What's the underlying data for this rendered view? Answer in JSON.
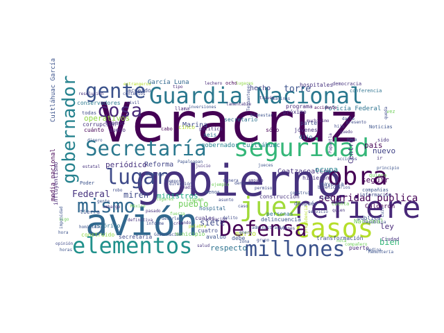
{
  "words": [
    {
      "text": "Veracruz",
      "color": "#440154"
    },
    {
      "text": "gobierno",
      "color": "#46327e"
    },
    {
      "text": "avión",
      "color": "#31688e"
    },
    {
      "text": "Guardia Nacional",
      "color": "#2a788e"
    },
    {
      "text": "seguridad",
      "color": "#35b779"
    },
    {
      "text": "Secretaría",
      "color": "#2a788e"
    },
    {
      "text": "refiere",
      "color": "#482878"
    },
    {
      "text": "casos",
      "color": "#b5de2b"
    },
    {
      "text": "juez",
      "color": "#a0da39"
    },
    {
      "text": "Defensa",
      "color": "#440154"
    },
    {
      "text": "elementos",
      "color": "#21918c"
    },
    {
      "text": "millones",
      "color": "#3b528b"
    },
    {
      "text": "gente",
      "color": "#3b528b"
    },
    {
      "text": "gobernador",
      "color": "#26828e"
    },
    {
      "text": "obra",
      "color": "#440154"
    },
    {
      "text": "lugar",
      "color": "#3e4a89"
    },
    {
      "text": "mismo",
      "color": "#31688e"
    },
    {
      "text": "cosa",
      "color": "#482878"
    },
    {
      "text": "Federal",
      "color": "#46327e"
    },
    {
      "text": "seguridad pública",
      "color": "#440154"
    },
    {
      "text": "hecho",
      "color": "#414487"
    },
    {
      "text": "Marina",
      "color": "#3e4a89"
    },
    {
      "text": "gobernador Cuitláhuac",
      "color": "#26828e"
    },
    {
      "text": "Coatzacoalcos",
      "color": "#46327e"
    },
    {
      "text": "país",
      "color": "#440154"
    },
    {
      "text": "nuevo",
      "color": "#414487"
    },
    {
      "text": "seguir",
      "color": "#440154"
    },
    {
      "text": "ley",
      "color": "#482878"
    },
    {
      "text": "bien",
      "color": "#35b779"
    },
    {
      "text": "Policía Federal",
      "color": "#2c728e"
    },
    {
      "text": "torre",
      "color": "#3b528b"
    },
    {
      "text": "pueblo",
      "color": "#6ece58"
    },
    {
      "text": "ministros",
      "color": "#22a884"
    },
    {
      "text": "miren",
      "color": "#3e4a89"
    },
    {
      "text": "siete",
      "color": "#3e4a89"
    },
    {
      "text": "marzo",
      "color": "#b5de2b"
    },
    {
      "text": "ocupa",
      "color": "#26828e"
    },
    {
      "text": "respecto",
      "color": "#2c728e"
    },
    {
      "text": "Reforma",
      "color": "#414487"
    },
    {
      "text": "periódico",
      "color": "#46327e"
    },
    {
      "text": "operativos",
      "color": "#8fd744"
    },
    {
      "text": "García Luna",
      "color": "#31688e"
    },
    {
      "text": "conservadores",
      "color": "#2a788e"
    },
    {
      "text": "corrupción",
      "color": "#46327e"
    },
    {
      "text": "cuánto",
      "color": "#440154"
    },
    {
      "text": "tiempo",
      "color": "#46327e"
    },
    {
      "text": "dueño",
      "color": "#482878"
    },
    {
      "text": "acuerdo",
      "color": "#3e4a89"
    },
    {
      "text": "hospitales",
      "color": "#46327e"
    },
    {
      "text": "programa",
      "color": "#482878"
    },
    {
      "text": "próximo",
      "color": "#46327e"
    },
    {
      "text": "secretario",
      "color": "#2c728e"
    },
    {
      "text": "jóvenes",
      "color": "#46327e"
    },
    {
      "text": "sólo",
      "color": "#440154"
    },
    {
      "text": "dijo",
      "color": "#31688e"
    },
    {
      "text": "parte",
      "color": "#3e4a89"
    },
    {
      "text": "mayoría",
      "color": "#3b528b"
    },
    {
      "text": "hicieron",
      "color": "#46327e"
    },
    {
      "text": "después",
      "color": "#3e4a89"
    },
    {
      "text": "personas",
      "color": "#2c728e"
    },
    {
      "text": "delincuencia",
      "color": "#3b528b"
    },
    {
      "text": "construcción",
      "color": "#46327e"
    },
    {
      "text": "hospital",
      "color": "#31688e"
    },
    {
      "text": "Calderón",
      "color": "#440154"
    },
    {
      "text": "Nacional",
      "color": "#6ece58"
    },
    {
      "text": "pública",
      "color": "#3b528b"
    },
    {
      "text": "transformación",
      "color": "#3e4a89"
    },
    {
      "text": "puerto",
      "color": "#482878"
    },
    {
      "text": "Ciudad",
      "color": "#46327e"
    },
    {
      "text": "secretaria",
      "color": "#3e4a89"
    },
    {
      "text": "Centro",
      "color": "#46327e"
    },
    {
      "text": "media nacional",
      "color": "#440154"
    },
    {
      "text": "Cuitláhuac García",
      "color": "#3b528b"
    },
    {
      "text": "influyentismo",
      "color": "#482878"
    },
    {
      "text": "tierra",
      "color": "#3b528b"
    },
    {
      "text": "histórico",
      "color": "#2c728e"
    },
    {
      "text": "construido",
      "color": "#8fd744"
    },
    {
      "text": "hora",
      "color": "#3b528b"
    },
    {
      "text": "siguen",
      "color": "#6ece58"
    },
    {
      "text": "cuatro",
      "color": "#3e4a89"
    },
    {
      "text": "cuales",
      "color": "#46327e"
    },
    {
      "text": "municipio",
      "color": "#6ece58"
    },
    {
      "text": "avalúo",
      "color": "#3b528b"
    },
    {
      "text": "debe",
      "color": "#3b528b"
    },
    {
      "text": "democracia",
      "color": "#46327e"
    },
    {
      "text": "conferencia",
      "color": "#2c728e"
    },
    {
      "text": "Noticias",
      "color": "#3b528b"
    },
    {
      "text": "sido",
      "color": "#46327e"
    },
    {
      "text": "compañías",
      "color": "#3b528b"
    },
    {
      "text": "información",
      "color": "#3e4a89"
    },
    {
      "text": "Papantla",
      "color": "#46327e"
    },
    {
      "text": "quiero",
      "color": "#6ece58"
    },
    {
      "text": "principio",
      "color": "#3b528b"
    },
    {
      "text": "República",
      "color": "#3e4a89"
    },
    {
      "text": "compañero",
      "color": "#6ece58"
    },
    {
      "text": "Remontería",
      "color": "#3b528b"
    },
    {
      "text": "ocho",
      "color": "#440154"
    },
    {
      "text": "lechero",
      "color": "#482878"
    },
    {
      "text": "lugares",
      "color": "#8fd744"
    },
    {
      "text": "Salinas",
      "color": "#3b528b"
    },
    {
      "text": "través",
      "color": "#46327e"
    },
    {
      "text": "accidente",
      "color": "#440154"
    },
    {
      "text": "hijo",
      "color": "#3e4a89"
    },
    {
      "text": "bienestar",
      "color": "#3b528b"
    },
    {
      "text": "Tehuantepec",
      "color": "#3e4a89"
    },
    {
      "text": "Gobernación",
      "color": "#3b528b"
    },
    {
      "text": "juicio",
      "color": "#46327e"
    },
    {
      "text": "jueces",
      "color": "#3b528b"
    },
    {
      "text": "menos",
      "color": "#3b528b"
    },
    {
      "text": "denuncia",
      "color": "#3e4a89"
    },
    {
      "text": "enero",
      "color": "#3b528b"
    },
    {
      "text": "grupo",
      "color": "#3e4a89"
    },
    {
      "text": "aviones",
      "color": "#46327e"
    },
    {
      "text": "inversiones",
      "color": "#3b528b"
    },
    {
      "text": "llama",
      "color": "#482878"
    },
    {
      "text": "cabo",
      "color": "#440154"
    },
    {
      "text": "político",
      "color": "#46327e"
    },
    {
      "text": "seis",
      "color": "#2c728e"
    },
    {
      "text": "cinco",
      "color": "#b5de2b"
    },
    {
      "text": "todas",
      "color": "#3e4a89"
    },
    {
      "text": "dinero",
      "color": "#3b528b"
    },
    {
      "text": "estatal",
      "color": "#46327e"
    },
    {
      "text": "Poder",
      "color": "#3b528b"
    },
    {
      "text": "robo",
      "color": "#3e4a89"
    },
    {
      "text": "tipo",
      "color": "#482878"
    },
    {
      "text": "civil",
      "color": "#3e4a89"
    },
    {
      "text": "definitiva",
      "color": "#46327e"
    },
    {
      "text": "decirle",
      "color": "#3b528b"
    },
    {
      "text": "contentos",
      "color": "#3e4a89"
    },
    {
      "text": "embargo",
      "color": "#46327e"
    },
    {
      "text": "homicidio",
      "color": "#3b528b"
    },
    {
      "text": "informe",
      "color": "#3e4a89"
    },
    {
      "text": "vigo",
      "color": "#6ece58"
    },
    {
      "text": "pasado",
      "color": "#46327e"
    },
    {
      "text": "fuerza",
      "color": "#6ece58"
    },
    {
      "text": "horas",
      "color": "#3b528b"
    },
    {
      "text": "opinión",
      "color": "#3e4a89"
    },
    {
      "text": "salud",
      "color": "#46327e"
    },
    {
      "text": "zona",
      "color": "#3b528b"
    },
    {
      "text": "delito",
      "color": "#3e4a89"
    },
    {
      "text": "actuación",
      "color": "#46327e"
    },
    {
      "text": "administración",
      "color": "#3b528b"
    },
    {
      "text": "permiso",
      "color": "#3e4a89"
    },
    {
      "text": "amparo",
      "color": "#46327e"
    },
    {
      "text": "construí",
      "color": "#3b528b"
    },
    {
      "text": "beneficiarios",
      "color": "#3e4a89"
    },
    {
      "text": "cuenta",
      "color": "#6ece58"
    },
    {
      "text": "ir",
      "color": "#46327e"
    },
    {
      "text": "vez",
      "color": "#6ece58"
    },
    {
      "text": "muchísimo",
      "color": "#482878"
    },
    {
      "text": "darle",
      "color": "#3b528b"
    },
    {
      "text": "presento",
      "color": "#3e4a89"
    },
    {
      "text": "lamentable",
      "color": "#46327e"
    },
    {
      "text": "Medina",
      "color": "#3b528b"
    },
    {
      "text": "acciones",
      "color": "#3e4a89"
    },
    {
      "text": "resolución",
      "color": "#46327e"
    },
    {
      "text": "Papaloapan",
      "color": "#3b528b"
    },
    {
      "text": "manera",
      "color": "#3e4a89"
    },
    {
      "text": "estrangeros",
      "color": "#b5de2b"
    },
    {
      "text": "lugares",
      "color": "#6ece58"
    },
    {
      "text": "impunidad",
      "color": "#3b528b"
    },
    {
      "text": "dirección",
      "color": "#3e4a89"
    },
    {
      "text": "presidencia",
      "color": "#b5de2b"
    },
    {
      "text": "quedo",
      "color": "#46327e"
    },
    {
      "text": "pasa",
      "color": "#3b528b"
    },
    {
      "text": "queda",
      "color": "#3e4a89"
    },
    {
      "text": "ejemplo",
      "color": "#6ece58"
    },
    {
      "text": "nadie",
      "color": "#46327e"
    },
    {
      "text": "Luis",
      "color": "#3b528b"
    },
    {
      "text": "tiempos",
      "color": "#3e4a89"
    },
    {
      "text": "creo",
      "color": "#46327e"
    },
    {
      "text": "gente",
      "color": "#3b528b"
    },
    {
      "text": "México",
      "color": "#6ece58"
    },
    {
      "text": "asunto",
      "color": "#3e4a89"
    },
    {
      "text": "fondo",
      "color": "#46327e"
    },
    {
      "text": "palabra",
      "color": "#b5de2b"
    },
    {
      "text": "niños",
      "color": "#3b528b"
    },
    {
      "text": "servicio",
      "color": "#3e4a89"
    },
    {
      "text": "quien",
      "color": "#46327e"
    },
    {
      "text": "nota",
      "color": "#6ece58"
    },
    {
      "text": "momento",
      "color": "#3b528b"
    },
    {
      "text": "caso",
      "color": "#3e4a89"
    }
  ]
}
